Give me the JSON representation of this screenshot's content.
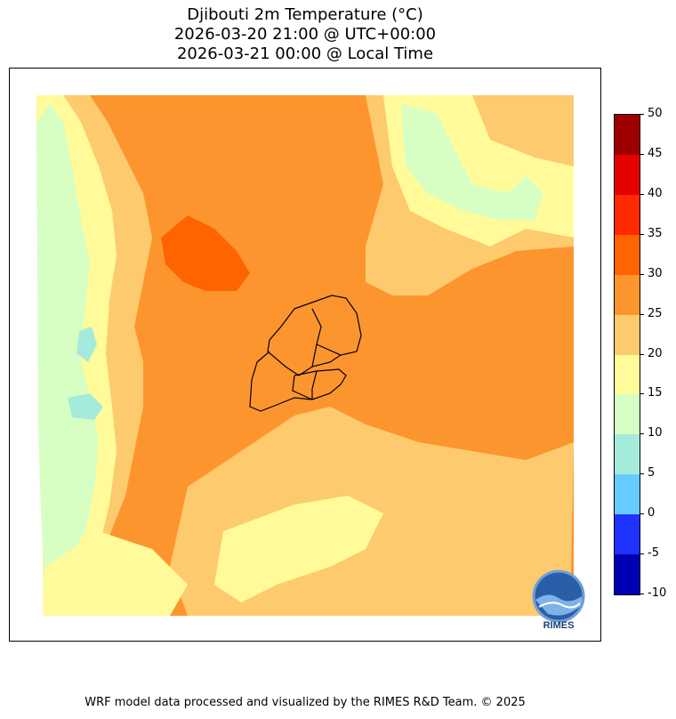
{
  "title": {
    "line1": "Djibouti 2m Temperature (°C)",
    "line2": "2026-03-20 21:00 @ UTC+00:00",
    "line3": "2026-03-21 00:00 @ Local Time"
  },
  "colorbar": {
    "ticks": [
      "50",
      "45",
      "40",
      "35",
      "30",
      "25",
      "20",
      "15",
      "10",
      "5",
      "0",
      "-5",
      "-10"
    ],
    "colors": [
      "#9e0000",
      "#e60000",
      "#ff2a00",
      "#ff6400",
      "#fd952f",
      "#fdcb6e",
      "#fffb9a",
      "#d7ffc4",
      "#a5ebdb",
      "#66ccff",
      "#1f33ff",
      "#0000b4"
    ]
  },
  "logo": {
    "text": "RIMES"
  },
  "footer": "WRF model data processed and visualized by the RIMES R&D Team. © 2025"
}
